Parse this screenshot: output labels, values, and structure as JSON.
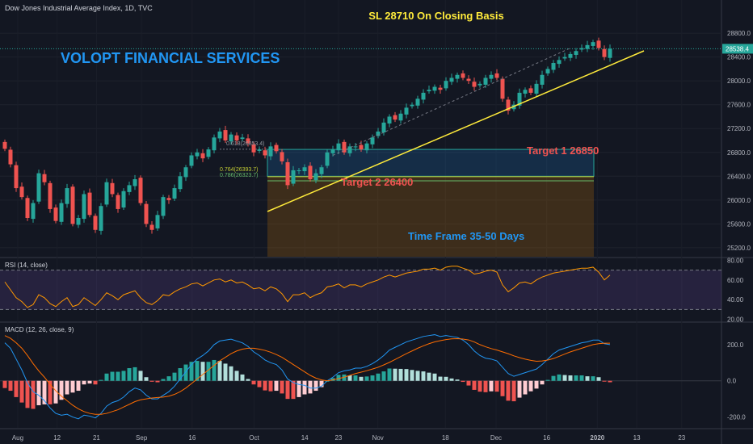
{
  "header": {
    "symbol_title": "Dow Jones Industrial Average Index, 1D, TVC",
    "sl_text": "SL 28710 On Closing Basis",
    "brand_text": "VOLOPT FINANCIAL SERVICES"
  },
  "annotations": {
    "target1": "Target 1 26850",
    "target2": "Target 2 26400",
    "timeframe": "Time Frame 35-50 Days",
    "fib_0618": "0.618(26853.4)",
    "fib_0764": "0.764(26393.7)",
    "fib_0786": "0.786(26323.7)"
  },
  "colors": {
    "background": "#131722",
    "up": "#26a69a",
    "down": "#ef5350",
    "trendline": "#ffeb3b",
    "sl_text": "#ffeb3b",
    "brand": "#2196f3",
    "target": "#ef5350",
    "timeframe": "#2196f3",
    "rsi_line": "#ff9800",
    "macd_line": "#2196f3",
    "signal_line": "#ff6d00"
  },
  "chart_data": [
    {
      "type": "candlestick",
      "title": "Dow Jones Industrial Average Index, 1D, TVC",
      "x_tick_labels": [
        "Aug",
        "12",
        "21",
        "Sep",
        "16",
        "Oct",
        "14",
        "23",
        "Nov",
        "18",
        "Dec",
        "16",
        "2020",
        "13",
        "23"
      ],
      "y_tick_labels": [
        "28800.0",
        "28400.0",
        "28000.0",
        "27600.0",
        "27200.0",
        "26800.0",
        "26400.0",
        "26000.0",
        "25600.0",
        "25200.0"
      ],
      "ylim": [
        25050,
        28950
      ],
      "last_price_label": "28538.4",
      "last_price": 28538.4,
      "close": [
        26860,
        26600,
        26200,
        26050,
        25700,
        25950,
        26450,
        26300,
        25850,
        25650,
        25950,
        26200,
        25600,
        25700,
        26100,
        25750,
        25500,
        25900,
        26300,
        26100,
        25850,
        26150,
        26250,
        26350,
        25950,
        25600,
        25500,
        25750,
        26050,
        26000,
        26200,
        26400,
        26550,
        26750,
        26800,
        26700,
        26850,
        27050,
        27150,
        27000,
        27100,
        27000,
        27050,
        26950,
        26800,
        26850,
        26750,
        26900,
        26820,
        26650,
        26250,
        26500,
        26500,
        26550,
        26350,
        26450,
        26550,
        26800,
        26850,
        26950,
        26800,
        26900,
        26900,
        26850,
        26950,
        27050,
        27150,
        27300,
        27400,
        27350,
        27450,
        27550,
        27600,
        27700,
        27800,
        27850,
        27900,
        27850,
        28000,
        28050,
        28100,
        28050,
        28000,
        27900,
        27950,
        28050,
        28100,
        28050,
        27700,
        27500,
        27600,
        27800,
        27850,
        27800,
        27950,
        28100,
        28200,
        28300,
        28350,
        28400,
        28450,
        28500,
        28550,
        28600,
        28650,
        28550,
        28400,
        28540
      ]
    },
    {
      "type": "line",
      "title": "RSI (14, close)",
      "y_tick_labels": [
        "80.00",
        "60.00",
        "40.00",
        "20.00"
      ],
      "ylim": [
        18,
        82
      ],
      "bands": [
        30,
        70
      ],
      "series": [
        {
          "values": [
            58,
            50,
            42,
            38,
            32,
            35,
            45,
            42,
            36,
            33,
            38,
            42,
            33,
            35,
            42,
            38,
            34,
            40,
            47,
            44,
            40,
            45,
            47,
            49,
            42,
            37,
            35,
            39,
            45,
            44,
            48,
            51,
            53,
            56,
            57,
            54,
            57,
            60,
            61,
            58,
            60,
            57,
            58,
            55,
            51,
            52,
            49,
            53,
            51,
            46,
            38,
            45,
            45,
            47,
            42,
            45,
            47,
            53,
            54,
            56,
            52,
            55,
            55,
            53,
            56,
            58,
            60,
            63,
            65,
            63,
            65,
            67,
            68,
            69,
            71,
            71,
            72,
            70,
            73,
            74,
            74,
            72,
            70,
            66,
            67,
            69,
            70,
            68,
            55,
            48,
            52,
            57,
            58,
            56,
            60,
            63,
            65,
            67,
            68,
            69,
            70,
            71,
            72,
            72,
            73,
            68,
            60,
            65
          ]
        }
      ]
    },
    {
      "type": "line+bar",
      "title": "MACD (12, 26, close, 9)",
      "y_tick_labels": [
        "200.0",
        "0.0",
        "-200.0"
      ],
      "ylim": [
        -260,
        320
      ],
      "series": [
        {
          "name": "MACD",
          "values": [
            210,
            180,
            120,
            60,
            -10,
            -60,
            -80,
            -110,
            -150,
            -180,
            -190,
            -185,
            -200,
            -210,
            -190,
            -195,
            -205,
            -180,
            -140,
            -120,
            -110,
            -90,
            -60,
            -40,
            -50,
            -80,
            -100,
            -100,
            -80,
            -60,
            -30,
            10,
            50,
            90,
            120,
            140,
            165,
            200,
            220,
            225,
            230,
            220,
            210,
            190,
            160,
            140,
            115,
            100,
            90,
            60,
            10,
            -10,
            -20,
            -25,
            -40,
            -40,
            -30,
            0,
            20,
            45,
            55,
            60,
            70,
            70,
            80,
            95,
            115,
            140,
            170,
            185,
            200,
            215,
            225,
            235,
            245,
            250,
            255,
            245,
            250,
            245,
            240,
            225,
            200,
            165,
            140,
            125,
            120,
            110,
            75,
            40,
            25,
            35,
            45,
            55,
            65,
            90,
            120,
            150,
            170,
            180,
            190,
            200,
            210,
            215,
            225,
            225,
            205,
            200
          ]
        },
        {
          "name": "Signal",
          "values": [
            250,
            235,
            210,
            180,
            140,
            95,
            55,
            20,
            -20,
            -55,
            -85,
            -110,
            -135,
            -155,
            -170,
            -180,
            -185,
            -185,
            -180,
            -170,
            -160,
            -145,
            -130,
            -115,
            -105,
            -100,
            -95,
            -92,
            -90,
            -85,
            -75,
            -60,
            -40,
            -15,
            10,
            35,
            60,
            85,
            110,
            130,
            150,
            165,
            175,
            180,
            180,
            175,
            168,
            158,
            145,
            130,
            110,
            90,
            70,
            50,
            30,
            15,
            5,
            0,
            5,
            12,
            20,
            30,
            40,
            48,
            56,
            65,
            75,
            88,
            102,
            118,
            134,
            150,
            165,
            180,
            193,
            205,
            215,
            222,
            228,
            232,
            233,
            231,
            226,
            215,
            200,
            188,
            178,
            170,
            160,
            150,
            138,
            128,
            120,
            113,
            108,
            110,
            115,
            123,
            135,
            148,
            160,
            170,
            180,
            190,
            200,
            205,
            208,
            208
          ]
        }
      ]
    }
  ]
}
